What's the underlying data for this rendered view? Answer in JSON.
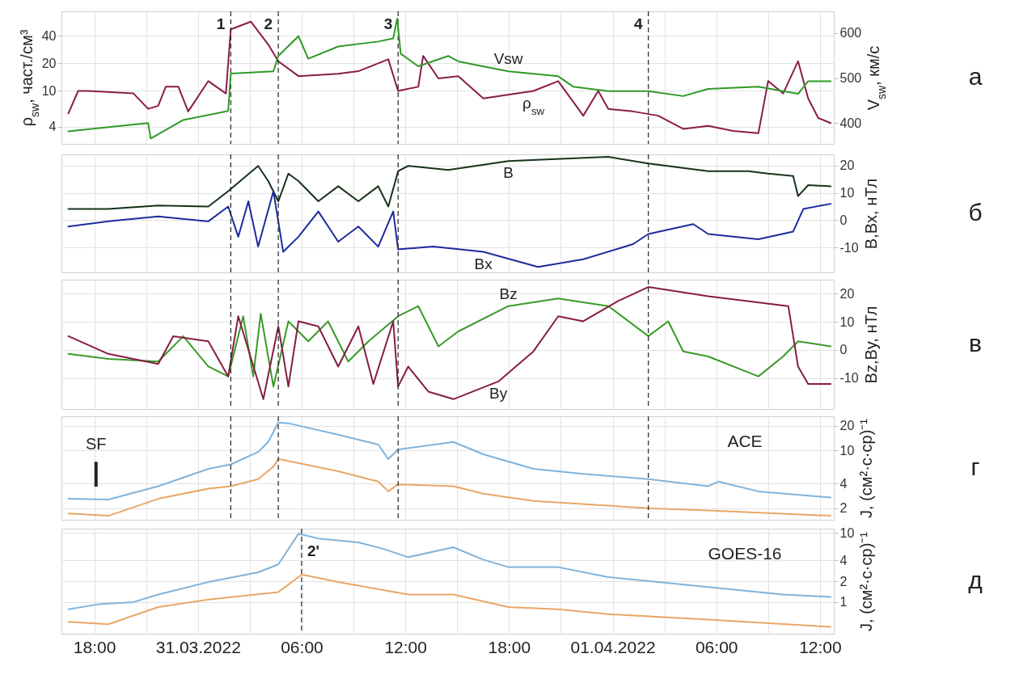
{
  "chart_data": [
    {
      "type": "line",
      "xlim": [
        "2022-03-30T16:06",
        "2022-04-01T12:48"
      ],
      "ylim": [
        2.6,
        74
      ],
      "yticks": [
        4,
        10,
        20,
        40
      ],
      "ylabel": "ρ$_{sw}$, част./см³",
      "y2lim": [
        354,
        648
      ],
      "y2ticks": [
        400,
        500,
        600
      ],
      "y2label": "V$_{sw}$, км/с",
      "log": "y",
      "grid": true,
      "tick_labels": "y",
      "series": [
        {
          "name": "ρ$_{sw}$",
          "color": "#8a1c4a",
          "x": [
            "2022-03-30T16:30",
            "2022-03-30T17:04",
            "2022-03-30T17:39",
            "2022-03-30T20:16",
            "2022-03-30T21:07",
            "2022-03-30T21:42",
            "2022-03-30T22:08",
            "2022-03-30T22:52",
            "2022-03-30T23:26",
            "2022-03-31T00:36",
            "2022-03-31T01:37",
            "2022-03-31T01:54",
            "2022-03-31T03:04",
            "2022-03-31T04:04",
            "2022-03-31T04:39",
            "2022-03-31T05:49",
            "2022-03-31T08:07",
            "2022-03-31T09:17",
            "2022-03-31T11:01",
            "2022-03-31T11:35",
            "2022-03-31T12:45",
            "2022-03-31T13:02",
            "2022-03-31T13:55",
            "2022-03-31T15:04",
            "2022-03-31T16:31",
            "2022-03-31T19:25",
            "2022-03-31T20:51",
            "2022-03-31T22:18",
            "2022-03-31T23:10",
            "2022-03-31T23:45",
            "2022-04-01T01:11",
            "2022-04-01T02:38",
            "2022-04-01T04:05",
            "2022-04-01T05:32",
            "2022-04-01T06:59",
            "2022-04-01T08:26",
            "2022-04-01T09:00",
            "2022-04-01T09:52",
            "2022-04-01T10:44",
            "2022-04-01T11:19",
            "2022-04-01T11:54",
            "2022-04-01T12:37"
          ],
          "values": [
            5.6,
            9.9,
            9.9,
            9.3,
            6.3,
            6.8,
            11,
            11,
            5.9,
            12.7,
            9.3,
            47,
            57,
            32,
            21,
            14.4,
            15.3,
            16.3,
            22,
            9.9,
            11,
            24,
            13.6,
            14.4,
            8.2,
            9.9,
            12.7,
            5.3,
            9.9,
            6.3,
            5.9,
            5.3,
            3.8,
            4.1,
            3.6,
            3.4,
            12.7,
            9.3,
            21,
            8.2,
            5.0,
            4.4
          ]
        },
        {
          "name": "Vsw",
          "color": "#2f9a26",
          "axis": "y2",
          "x": [
            "2022-03-30T16:30",
            "2022-03-30T18:49",
            "2022-03-30T21:07",
            "2022-03-30T21:16",
            "2022-03-30T23:09",
            "2022-03-31T01:45",
            "2022-03-31T01:54",
            "2022-03-31T04:22",
            "2022-03-31T04:39",
            "2022-03-31T05:49",
            "2022-03-31T06:23",
            "2022-03-31T08:07",
            "2022-03-31T10:26",
            "2022-03-31T11:18",
            "2022-03-31T11:32",
            "2022-03-31T11:44",
            "2022-03-31T12:45",
            "2022-03-31T14:29",
            "2022-03-31T15:04",
            "2022-03-31T17:58",
            "2022-03-31T20:51",
            "2022-03-31T21:43",
            "2022-03-31T23:45",
            "2022-04-01T02:04",
            "2022-04-01T04:05",
            "2022-04-01T05:32",
            "2022-04-01T08:26",
            "2022-04-01T10:44",
            "2022-04-01T11:19",
            "2022-04-01T12:37"
          ],
          "values": [
            382,
            391,
            400,
            366,
            407,
            427,
            510,
            515,
            549,
            593,
            543,
            570,
            581,
            588,
            632,
            554,
            526,
            549,
            537,
            515,
            504,
            481,
            471,
            471,
            460,
            476,
            481,
            465,
            493,
            493
          ]
        }
      ],
      "ref_lines": [
        {
          "axis": "x",
          "value": "2022-03-31T01:54",
          "label": "1",
          "line_style": "dashed"
        },
        {
          "axis": "x",
          "value": "2022-03-31T04:39",
          "label": "2",
          "line_style": "dashed"
        },
        {
          "axis": "x",
          "value": "2022-03-31T11:35",
          "label": "3",
          "line_style": "dashed"
        },
        {
          "axis": "x",
          "value": "2022-04-01T02:04",
          "label": "4",
          "line_style": "dashed"
        }
      ],
      "annotations": [
        "а"
      ]
    },
    {
      "type": "line",
      "xlim": [
        "2022-03-30T16:06",
        "2022-04-01T12:48"
      ],
      "y2lim": [
        -19,
        24
      ],
      "y2ticks": [
        -10,
        0,
        10,
        20
      ],
      "y2label": "B,Bx, нТл",
      "grid": true,
      "tick_labels": "y",
      "series": [
        {
          "name": "B",
          "color": "#16331a",
          "axis": "y2",
          "x": [
            "2022-03-30T16:30",
            "2022-03-30T18:49",
            "2022-03-30T21:42",
            "2022-03-31T00:36",
            "2022-03-31T01:45",
            "2022-03-31T03:29",
            "2022-03-31T04:04",
            "2022-03-31T04:39",
            "2022-03-31T05:14",
            "2022-03-31T05:49",
            "2022-03-31T06:58",
            "2022-03-31T08:07",
            "2022-03-31T09:17",
            "2022-03-31T10:26",
            "2022-03-31T11:01",
            "2022-03-31T11:35",
            "2022-03-31T12:10",
            "2022-03-31T14:29",
            "2022-03-31T17:58",
            "2022-03-31T23:45",
            "2022-04-01T02:04",
            "2022-04-01T05:32",
            "2022-04-01T07:51",
            "2022-04-01T09:00",
            "2022-04-01T10:27",
            "2022-04-01T10:44",
            "2022-04-01T11:19",
            "2022-04-01T12:37"
          ],
          "values": [
            4.1,
            4.1,
            5.4,
            5.0,
            10.6,
            19.8,
            14.3,
            6.9,
            17.0,
            14.3,
            6.9,
            12.4,
            6.9,
            12.4,
            5.0,
            17.9,
            19.8,
            18.3,
            21.6,
            23.1,
            20.7,
            17.9,
            17.9,
            17.0,
            16.1,
            8.8,
            12.8,
            12.4
          ]
        },
        {
          "name": "Bx",
          "color": "#1c2c9c",
          "axis": "y2",
          "x": [
            "2022-03-30T16:30",
            "2022-03-30T18:49",
            "2022-03-30T21:42",
            "2022-03-31T00:36",
            "2022-03-31T01:45",
            "2022-03-31T02:20",
            "2022-03-31T02:55",
            "2022-03-31T03:29",
            "2022-03-31T04:22",
            "2022-03-31T04:56",
            "2022-03-31T05:49",
            "2022-03-31T06:58",
            "2022-03-31T08:07",
            "2022-03-31T09:17",
            "2022-03-31T10:26",
            "2022-03-31T11:18",
            "2022-03-31T11:35",
            "2022-03-31T13:37",
            "2022-03-31T16:31",
            "2022-03-31T19:41",
            "2022-03-31T22:18",
            "2022-04-01T01:11",
            "2022-04-01T02:04",
            "2022-04-01T04:40",
            "2022-04-01T05:32",
            "2022-04-01T08:26",
            "2022-04-01T10:27",
            "2022-04-01T11:02",
            "2022-04-01T12:37"
          ],
          "values": [
            -2.3,
            -0.4,
            1.4,
            -0.4,
            5.0,
            -6.0,
            6.9,
            -9.6,
            10.6,
            -11.5,
            -6.0,
            3.2,
            -7.8,
            -2.3,
            -9.6,
            3.2,
            -10.6,
            -9.6,
            -11.5,
            -17.0,
            -14.2,
            -8.7,
            -5.0,
            -1.4,
            -5.0,
            -6.9,
            -4.1,
            4.1,
            6.0
          ]
        }
      ],
      "ref_lines": [
        {
          "axis": "x",
          "value": "2022-03-31T01:54",
          "line_style": "dashed"
        },
        {
          "axis": "x",
          "value": "2022-03-31T04:39",
          "line_style": "dashed"
        },
        {
          "axis": "x",
          "value": "2022-03-31T11:35",
          "line_style": "dashed"
        },
        {
          "axis": "x",
          "value": "2022-04-01T02:04",
          "line_style": "dashed"
        }
      ],
      "annotations": [
        "б"
      ]
    },
    {
      "type": "line",
      "xlim": [
        "2022-03-30T16:06",
        "2022-04-01T12:48"
      ],
      "y2lim": [
        -21,
        25
      ],
      "y2ticks": [
        -10,
        0,
        10,
        20
      ],
      "y2label": "Bz,By, нТл",
      "grid": true,
      "tick_labels": "y",
      "series": [
        {
          "name": "Bz",
          "color": "#3a9a28",
          "axis": "y2",
          "x": [
            "2022-03-30T16:30",
            "2022-03-30T18:49",
            "2022-03-30T21:42",
            "2022-03-30T23:09",
            "2022-03-31T00:36",
            "2022-03-31T01:45",
            "2022-03-31T02:37",
            "2022-03-31T03:12",
            "2022-03-31T03:38",
            "2022-03-31T04:22",
            "2022-03-31T05:14",
            "2022-03-31T06:23",
            "2022-03-31T07:32",
            "2022-03-31T08:42",
            "2022-03-31T09:52",
            "2022-03-31T11:35",
            "2022-03-31T12:45",
            "2022-03-31T13:55",
            "2022-03-31T15:04",
            "2022-03-31T17:58",
            "2022-03-31T20:51",
            "2022-03-31T23:45",
            "2022-04-01T02:04",
            "2022-04-01T03:13",
            "2022-04-01T04:05",
            "2022-04-01T05:32",
            "2022-04-01T08:26",
            "2022-04-01T09:52",
            "2022-04-01T10:44",
            "2022-04-01T12:37"
          ],
          "values": [
            -1.4,
            -3.2,
            -4.1,
            4.9,
            -5.9,
            -9.4,
            12.0,
            -9.4,
            12.9,
            -13.0,
            10.2,
            3.1,
            10.2,
            -4.1,
            3.1,
            12.0,
            15.6,
            1.3,
            6.6,
            15.6,
            18.3,
            15.6,
            4.9,
            10.2,
            -0.5,
            -2.3,
            -9.4,
            -2.3,
            3.1,
            1.3
          ]
        },
        {
          "name": "By",
          "color": "#861d45",
          "axis": "y2",
          "x": [
            "2022-03-30T16:30",
            "2022-03-30T18:49",
            "2022-03-30T21:42",
            "2022-03-30T22:34",
            "2022-03-31T00:36",
            "2022-03-31T01:45",
            "2022-03-31T02:20",
            "2022-03-31T03:47",
            "2022-03-31T04:39",
            "2022-03-31T05:14",
            "2022-03-31T05:49",
            "2022-03-31T06:58",
            "2022-03-31T08:07",
            "2022-03-31T09:17",
            "2022-03-31T10:09",
            "2022-03-31T11:18",
            "2022-03-31T11:35",
            "2022-03-31T12:10",
            "2022-03-31T13:20",
            "2022-03-31T14:47",
            "2022-03-31T17:23",
            "2022-03-31T19:25",
            "2022-03-31T20:51",
            "2022-03-31T22:18",
            "2022-04-01T00:19",
            "2022-04-01T02:04",
            "2022-04-01T05:32",
            "2022-04-01T10:10",
            "2022-04-01T10:44",
            "2022-04-01T11:19",
            "2022-04-01T12:37"
          ],
          "values": [
            4.9,
            -1.4,
            -5.0,
            4.9,
            3.1,
            -9.4,
            12.0,
            -17.5,
            8.4,
            -13.0,
            10.2,
            8.4,
            -5.9,
            8.4,
            -12.1,
            10.2,
            -13.0,
            -5.9,
            -14.8,
            -17.5,
            -11.2,
            -0.5,
            12.0,
            10.2,
            17.4,
            22.4,
            19.1,
            15.6,
            -5.9,
            -12.1,
            -12.1
          ]
        }
      ],
      "ref_lines": [
        {
          "axis": "x",
          "value": "2022-03-31T01:54",
          "line_style": "dashed"
        },
        {
          "axis": "x",
          "value": "2022-03-31T04:39",
          "line_style": "dashed"
        },
        {
          "axis": "x",
          "value": "2022-03-31T11:35",
          "line_style": "dashed"
        },
        {
          "axis": "x",
          "value": "2022-04-01T02:04",
          "line_style": "dashed"
        }
      ],
      "annotations": [
        "в"
      ]
    },
    {
      "type": "line",
      "xlim": [
        "2022-03-30T16:06",
        "2022-04-01T12:48"
      ],
      "y2lim": [
        1.45,
        26
      ],
      "y2ticks": [
        2,
        4,
        10,
        20
      ],
      "y2label": "J, (см²·с·ср)⁻¹",
      "log": "y2",
      "grid": true,
      "tick_labels": "y",
      "series": [
        {
          "color": "#7fb3dc",
          "axis": "y2",
          "x": [
            "2022-03-30T16:30",
            "2022-03-30T18:49",
            "2022-03-30T21:42",
            "2022-03-31T00:36",
            "2022-03-31T01:54",
            "2022-03-31T03:29",
            "2022-03-31T04:04",
            "2022-03-31T04:39",
            "2022-03-31T05:14",
            "2022-03-31T08:07",
            "2022-03-31T10:26",
            "2022-03-31T11:01",
            "2022-03-31T11:35",
            "2022-03-31T14:47",
            "2022-03-31T16:31",
            "2022-03-31T19:25",
            "2022-03-31T22:18",
            "2022-04-01T02:04",
            "2022-04-01T05:32",
            "2022-04-01T06:07",
            "2022-04-01T08:26",
            "2022-04-01T12:37"
          ],
          "values": [
            2.6,
            2.55,
            3.7,
            6.0,
            6.8,
            9.6,
            12.7,
            21.8,
            21.4,
            15.6,
            11.8,
            7.9,
            10.3,
            12.7,
            9.0,
            6.0,
            5.2,
            4.5,
            3.7,
            4.2,
            3.2,
            2.7
          ]
        },
        {
          "color": "#e9a667",
          "axis": "y2",
          "x": [
            "2022-03-30T16:30",
            "2022-03-30T18:49",
            "2022-03-30T21:42",
            "2022-03-31T00:36",
            "2022-03-31T01:54",
            "2022-03-31T03:29",
            "2022-03-31T04:22",
            "2022-03-31T04:39",
            "2022-03-31T08:07",
            "2022-03-31T10:26",
            "2022-03-31T11:01",
            "2022-03-31T11:35",
            "2022-03-31T14:47",
            "2022-03-31T16:31",
            "2022-03-31T19:25",
            "2022-04-01T02:04",
            "2022-04-01T06:07",
            "2022-04-01T12:37"
          ],
          "values": [
            1.73,
            1.62,
            2.6,
            3.45,
            3.7,
            4.5,
            6.4,
            7.9,
            5.6,
            4.2,
            3.2,
            3.9,
            3.7,
            3.0,
            2.45,
            2.0,
            1.86,
            1.62
          ]
        }
      ],
      "ref_lines": [
        {
          "axis": "x",
          "value": "2022-03-31T01:54",
          "line_style": "dashed"
        },
        {
          "axis": "x",
          "value": "2022-03-31T04:39",
          "line_style": "dashed"
        },
        {
          "axis": "x",
          "value": "2022-03-31T11:35",
          "line_style": "dashed"
        },
        {
          "axis": "x",
          "value": "2022-04-01T02:04",
          "line_style": "dashed"
        },
        {
          "axis": "x",
          "value": "2022-03-30T18:06",
          "label": "SF",
          "line_style": "solid"
        }
      ],
      "annotations": [
        "г",
        "ACE"
      ]
    },
    {
      "type": "line",
      "xlim": [
        "2022-03-30T16:06",
        "2022-04-01T12:48"
      ],
      "xticks": [
        {
          "value": "2022-03-30T18:00",
          "label": "18:00"
        },
        {
          "value": "2022-03-30T21:00",
          "label": null
        },
        {
          "value": "2022-03-31T00:00",
          "label": "31.03.2022"
        },
        {
          "value": "2022-03-31T03:00",
          "label": null
        },
        {
          "value": "2022-03-31T06:00",
          "label": "06:00"
        },
        {
          "value": "2022-03-31T09:00",
          "label": null
        },
        {
          "value": "2022-03-31T12:00",
          "label": "12:00"
        },
        {
          "value": "2022-03-31T15:00",
          "label": null
        },
        {
          "value": "2022-03-31T18:00",
          "label": "18:00"
        },
        {
          "value": "2022-03-31T21:00",
          "label": null
        },
        {
          "value": "2022-04-01T00:00",
          "label": "01.04.2022"
        },
        {
          "value": "2022-04-01T03:00",
          "label": null
        },
        {
          "value": "2022-04-01T06:00",
          "label": "06:00"
        },
        {
          "value": "2022-04-01T09:00",
          "label": null
        },
        {
          "value": "2022-04-01T12:00",
          "label": "12:00"
        }
      ],
      "y2lim": [
        0.35,
        11.5
      ],
      "y2ticks": [
        1,
        2,
        4,
        10
      ],
      "y2label": "J, (см²·с·ср)⁻¹",
      "log": "y2",
      "grid": true,
      "series": [
        {
          "color": "#7fb3dc",
          "axis": "y2",
          "x": [
            "2022-03-30T16:30",
            "2022-03-30T18:14",
            "2022-03-30T20:16",
            "2022-03-30T21:42",
            "2022-03-31T00:36",
            "2022-03-31T03:29",
            "2022-03-31T04:39",
            "2022-03-31T05:49",
            "2022-03-31T06:58",
            "2022-03-31T09:17",
            "2022-03-31T10:43",
            "2022-03-31T12:10",
            "2022-03-31T14:47",
            "2022-03-31T16:31",
            "2022-03-31T17:58",
            "2022-03-31T20:51",
            "2022-03-31T23:45",
            "2022-04-01T02:38",
            "2022-04-01T05:32",
            "2022-04-01T09:52",
            "2022-04-01T12:37"
          ],
          "values": [
            0.79,
            0.93,
            1.0,
            1.29,
            1.95,
            2.7,
            3.5,
            9.7,
            8.3,
            7.3,
            5.9,
            4.45,
            6.2,
            4.1,
            3.2,
            3.2,
            2.3,
            1.95,
            1.65,
            1.29,
            1.19
          ]
        },
        {
          "color": "#e9a667",
          "axis": "y2",
          "x": [
            "2022-03-30T16:30",
            "2022-03-30T18:49",
            "2022-03-30T21:42",
            "2022-03-31T00:36",
            "2022-03-31T04:39",
            "2022-03-31T06:01",
            "2022-03-31T08:07",
            "2022-03-31T12:10",
            "2022-03-31T14:47",
            "2022-03-31T17:58",
            "2022-03-31T20:51",
            "2022-03-31T23:45",
            "2022-04-01T05:32",
            "2022-04-01T12:37"
          ],
          "values": [
            0.52,
            0.48,
            0.85,
            1.09,
            1.4,
            2.5,
            1.95,
            1.29,
            1.29,
            0.85,
            0.79,
            0.67,
            0.56,
            0.44
          ]
        }
      ],
      "ref_lines": [
        {
          "axis": "x",
          "value": "2022-03-31T06:00",
          "label": "2'",
          "line_style": "dashed"
        }
      ],
      "annotations": [
        "д",
        "GOES-16"
      ]
    }
  ]
}
